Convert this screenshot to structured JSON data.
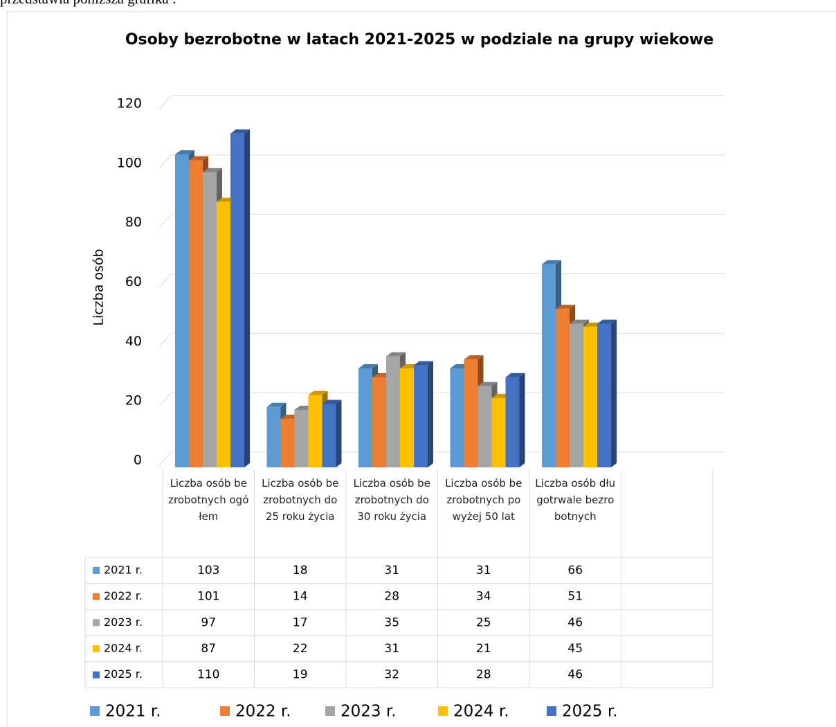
{
  "page_text": "przedstawia poniższa grafika :",
  "chart_data": {
    "type": "bar3d",
    "title": "Osoby bezrobotne w latach 2021-2025 w podziale na grupy wiekowe",
    "y_label": "Liczba osób",
    "categories": [
      "Liczba osób bezrobotnych ogółem",
      "Liczba osób bezrobotnych do 25 roku życia",
      "Liczba osób bezrobotnych do 30 roku życia",
      "Liczba osób bezrobotnych powyżej 50 lat",
      "Liczba osób długotrwale bezrobotnych",
      null
    ],
    "series": [
      {
        "name": "2021 r.",
        "color": "#5b9bd5",
        "values": [
          103,
          18,
          31,
          31,
          66,
          null
        ]
      },
      {
        "name": "2022 r.",
        "color": "#ed7d31",
        "values": [
          101,
          14,
          28,
          34,
          51,
          null
        ]
      },
      {
        "name": "2023 r.",
        "color": "#a5a5a5",
        "values": [
          97,
          17,
          35,
          25,
          46,
          null
        ]
      },
      {
        "name": "2024 r.",
        "color": "#ffc000",
        "values": [
          87,
          22,
          31,
          21,
          45,
          null
        ]
      },
      {
        "name": "2025 r.",
        "color": "#4472c4",
        "values": [
          110,
          19,
          32,
          28,
          46,
          null
        ]
      }
    ],
    "ylim": [
      0,
      120
    ],
    "yticks": [
      0,
      20,
      40,
      60,
      80,
      100,
      120
    ],
    "grid": true,
    "data_table": true,
    "legend": "bottom"
  }
}
